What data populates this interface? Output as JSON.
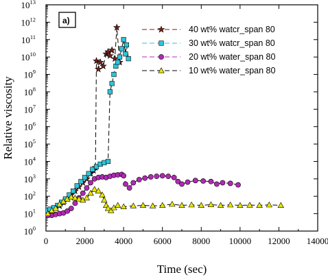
{
  "chart_data": {
    "type": "scatter",
    "panel_label": "a)",
    "xlabel": "Time (sec)",
    "ylabel": "Relative viscosity",
    "xlim": [
      0,
      14000
    ],
    "ylim_exponent": [
      0,
      13
    ],
    "y_scale": "log",
    "x_ticks": [
      "0",
      "2000",
      "4000",
      "6000",
      "8000",
      "10000",
      "12000",
      "14000"
    ],
    "y_tick_base": "10",
    "y_tick_exponents": [
      "0",
      "1",
      "2",
      "3",
      "4",
      "5",
      "6",
      "7",
      "8",
      "9",
      "10",
      "11",
      "12",
      "13"
    ],
    "legend_position": "top-right",
    "grid": false,
    "series": [
      {
        "name": "40 wt% watcr_span 80",
        "marker": "star",
        "color": "#7a1f16",
        "line": "dashed",
        "points": [
          [
            50,
            10
          ],
          [
            150,
            13
          ],
          [
            300,
            15
          ],
          [
            500,
            20
          ],
          [
            700,
            28
          ],
          [
            900,
            45
          ],
          [
            1100,
            70
          ],
          [
            1300,
            120
          ],
          [
            1500,
            200
          ],
          [
            1700,
            350
          ],
          [
            1900,
            600
          ],
          [
            2100,
            1000
          ],
          [
            2300,
            2000
          ],
          [
            2450,
            3000
          ],
          [
            2550,
            4500
          ],
          [
            2600,
            6000000000
          ],
          [
            2700,
            2000000000
          ],
          [
            2800,
            5000000000
          ],
          [
            2950,
            3000000000
          ],
          [
            3100,
            15000000000
          ],
          [
            3200,
            20000000000
          ],
          [
            3300,
            12000000000
          ],
          [
            3400,
            25000000000
          ],
          [
            3550,
            8000000000
          ],
          [
            3650,
            500000000000
          ],
          [
            3800,
            5000000000
          ]
        ]
      },
      {
        "name": "30 wt% watcr_span 80",
        "marker": "square",
        "color": "#2ec4d8",
        "line": "dashed",
        "points": [
          [
            50,
            15
          ],
          [
            200,
            18
          ],
          [
            400,
            22
          ],
          [
            600,
            30
          ],
          [
            800,
            45
          ],
          [
            1000,
            70
          ],
          [
            1200,
            120
          ],
          [
            1400,
            200
          ],
          [
            1600,
            400
          ],
          [
            1800,
            700
          ],
          [
            2000,
            1200
          ],
          [
            2200,
            2000
          ],
          [
            2400,
            3500
          ],
          [
            2600,
            5000
          ],
          [
            2800,
            7000
          ],
          [
            3000,
            8500
          ],
          [
            3200,
            10000
          ],
          [
            3300,
            100000000
          ],
          [
            3400,
            300000000
          ],
          [
            3500,
            1000000000
          ],
          [
            3600,
            3000000000
          ],
          [
            3700,
            5000000000
          ],
          [
            3800,
            10000000000
          ],
          [
            3900,
            30000000000
          ],
          [
            4000,
            100000000000
          ],
          [
            4100,
            15000000000
          ],
          [
            4150,
            50000000000
          ],
          [
            4250,
            8000000000
          ]
        ]
      },
      {
        "name": "20 wt% water_span 80",
        "marker": "circle",
        "color": "#b02ab3",
        "line": "dashed",
        "points": [
          [
            100,
            8
          ],
          [
            300,
            8
          ],
          [
            500,
            9
          ],
          [
            700,
            10
          ],
          [
            900,
            11
          ],
          [
            1100,
            14
          ],
          [
            1300,
            20
          ],
          [
            1500,
            40
          ],
          [
            1700,
            80
          ],
          [
            1900,
            150
          ],
          [
            2100,
            300
          ],
          [
            2300,
            600
          ],
          [
            2500,
            1000
          ],
          [
            2700,
            1200
          ],
          [
            2900,
            1300
          ],
          [
            3100,
            1200
          ],
          [
            3300,
            1400
          ],
          [
            3500,
            1600
          ],
          [
            3700,
            1700
          ],
          [
            3900,
            1800
          ],
          [
            4000,
            1500
          ],
          [
            4100,
            500
          ],
          [
            4300,
            300
          ],
          [
            4500,
            600
          ],
          [
            4800,
            900
          ],
          [
            5100,
            1100
          ],
          [
            5400,
            1300
          ],
          [
            5700,
            1400
          ],
          [
            6000,
            1500
          ],
          [
            6300,
            1400
          ],
          [
            6600,
            1200
          ],
          [
            6800,
            700
          ],
          [
            7000,
            500
          ],
          [
            7300,
            650
          ],
          [
            7700,
            800
          ],
          [
            8100,
            750
          ],
          [
            8500,
            700
          ],
          [
            8800,
            500
          ],
          [
            9100,
            600
          ],
          [
            9500,
            550
          ],
          [
            9900,
            450
          ]
        ]
      },
      {
        "name": "10 wt% water_span 80",
        "marker": "triangle",
        "color": "#e8e600",
        "line": "dashed",
        "points": [
          [
            100,
            10
          ],
          [
            300,
            15
          ],
          [
            500,
            20
          ],
          [
            700,
            35
          ],
          [
            900,
            50
          ],
          [
            1100,
            70
          ],
          [
            1300,
            90
          ],
          [
            1500,
            80
          ],
          [
            1700,
            70
          ],
          [
            1900,
            60
          ],
          [
            2100,
            80
          ],
          [
            2300,
            150
          ],
          [
            2500,
            250
          ],
          [
            2700,
            200
          ],
          [
            2900,
            120
          ],
          [
            3000,
            60
          ],
          [
            3100,
            30
          ],
          [
            3200,
            20
          ],
          [
            3350,
            15
          ],
          [
            3500,
            22
          ],
          [
            3700,
            30
          ],
          [
            4000,
            25
          ],
          [
            4500,
            28
          ],
          [
            5000,
            30
          ],
          [
            5500,
            28
          ],
          [
            6000,
            30
          ],
          [
            6500,
            35
          ],
          [
            7000,
            30
          ],
          [
            7500,
            32
          ],
          [
            8000,
            30
          ],
          [
            8500,
            33
          ],
          [
            9000,
            30
          ],
          [
            9500,
            32
          ],
          [
            10000,
            30
          ],
          [
            10500,
            31
          ],
          [
            11000,
            30
          ],
          [
            11500,
            32
          ],
          [
            12100,
            30
          ]
        ]
      }
    ]
  }
}
